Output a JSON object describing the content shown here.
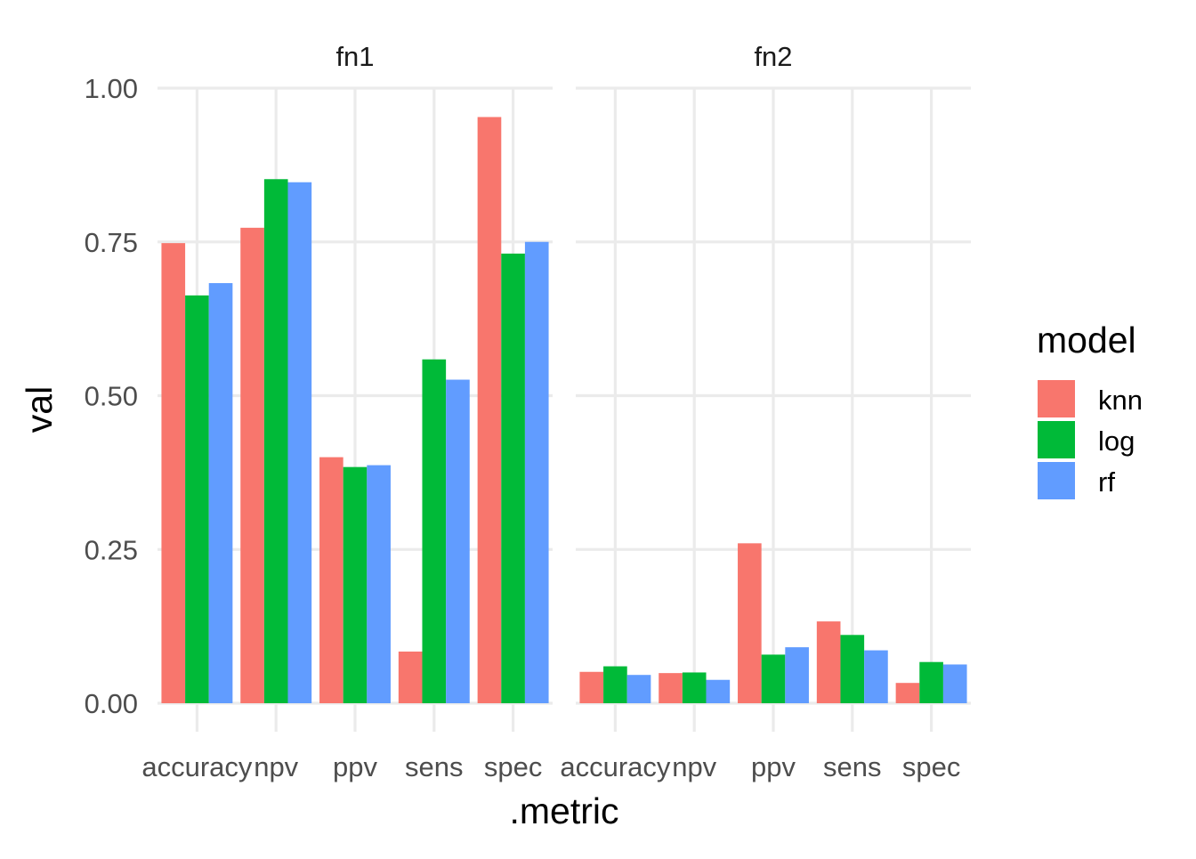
{
  "chart_data": {
    "type": "bar",
    "title": "",
    "xlabel": ".metric",
    "ylabel": "val",
    "ylim": [
      0,
      1
    ],
    "yticks": [
      0,
      0.25,
      0.5,
      0.75,
      1
    ],
    "ytick_labels": [
      "0.00",
      "0.25",
      "0.50",
      "0.75",
      "1.00"
    ],
    "grid": true,
    "legend": {
      "title": "model",
      "placement": "right",
      "entries": [
        "knn",
        "log",
        "rf"
      ]
    },
    "categories": [
      "accuracy",
      "npv",
      "ppv",
      "sens",
      "spec"
    ],
    "facets": [
      {
        "label": "fn1",
        "series": [
          {
            "name": "knn",
            "color": "#F8766D",
            "values": [
              0.748,
              0.773,
              0.4,
              0.084,
              0.953
            ]
          },
          {
            "name": "log",
            "color": "#00BA38",
            "values": [
              0.663,
              0.852,
              0.384,
              0.559,
              0.731
            ]
          },
          {
            "name": "rf",
            "color": "#619CFF",
            "values": [
              0.683,
              0.847,
              0.387,
              0.526,
              0.75
            ]
          }
        ]
      },
      {
        "label": "fn2",
        "series": [
          {
            "name": "knn",
            "color": "#F8766D",
            "values": [
              0.051,
              0.049,
              0.26,
              0.133,
              0.033
            ]
          },
          {
            "name": "log",
            "color": "#00BA38",
            "values": [
              0.06,
              0.05,
              0.079,
              0.111,
              0.067
            ]
          },
          {
            "name": "rf",
            "color": "#619CFF",
            "values": [
              0.046,
              0.038,
              0.091,
              0.086,
              0.063
            ]
          }
        ]
      }
    ]
  }
}
